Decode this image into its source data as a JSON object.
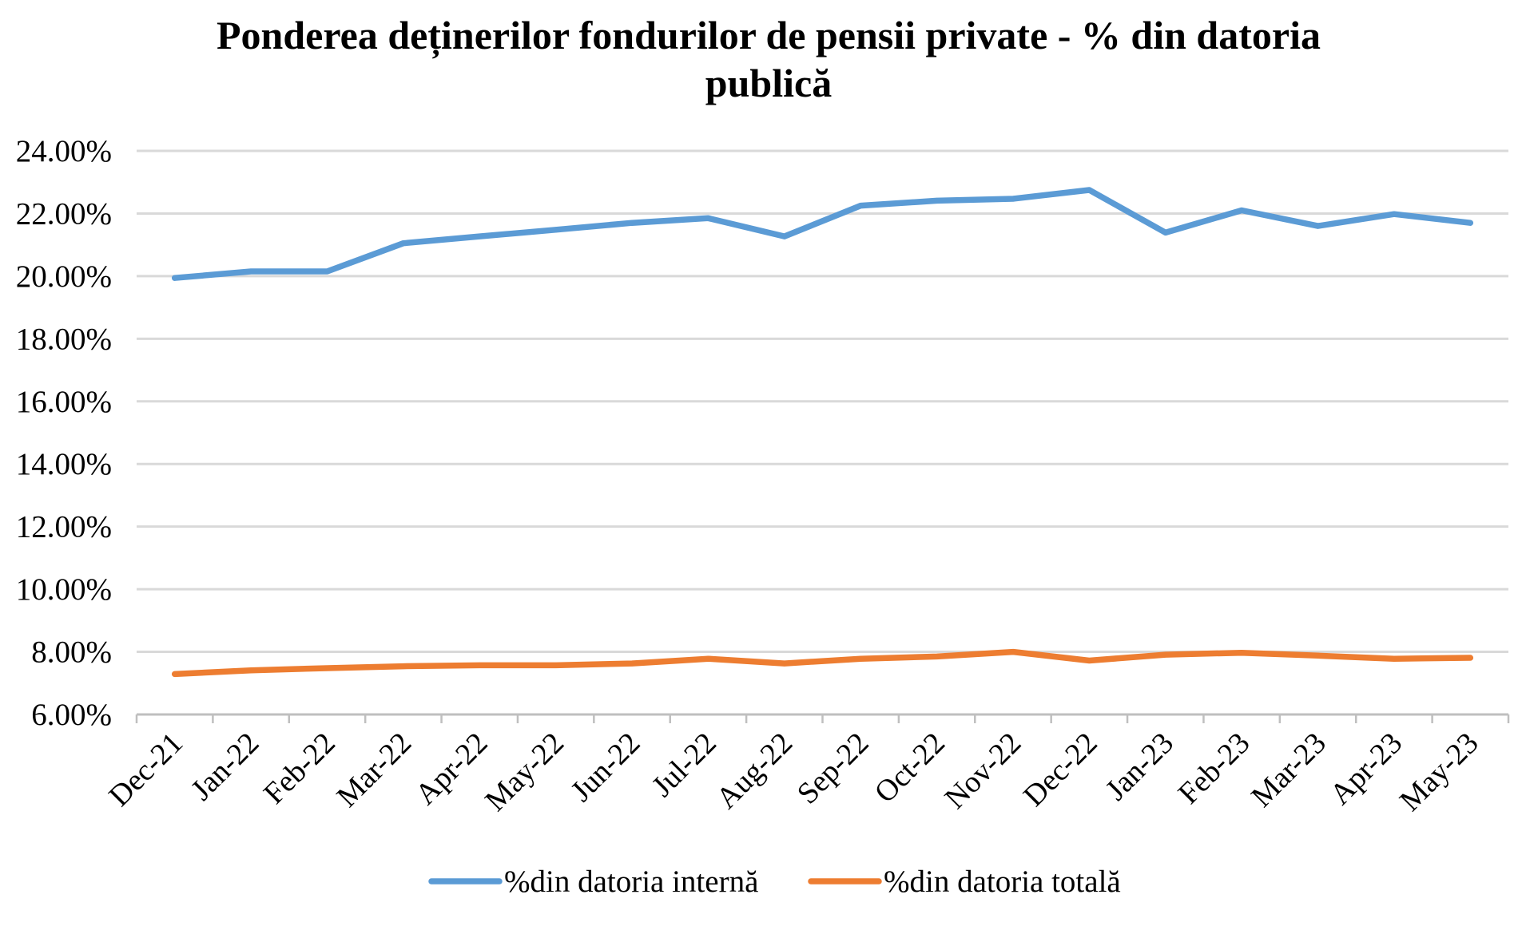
{
  "chart_data": {
    "type": "line",
    "title": "Ponderea deținerilor fondurilor de pensii private - % din datoria publică",
    "xlabel": "",
    "ylabel": "",
    "categories": [
      "Dec-21",
      "Jan-22",
      "Feb-22",
      "Mar-22",
      "Apr-22",
      "May-22",
      "Jun-22",
      "Jul-22",
      "Aug-22",
      "Sep-22",
      "Oct-22",
      "Nov-22",
      "Dec-22",
      "Jan-23",
      "Feb-23",
      "Mar-23",
      "Apr-23",
      "May-23"
    ],
    "series": [
      {
        "name": "%din datoria internă",
        "color": "#5b9bd5",
        "values": [
          19.94,
          20.15,
          20.15,
          21.05,
          21.27,
          21.48,
          21.7,
          21.85,
          21.27,
          22.25,
          22.41,
          22.47,
          22.75,
          21.39,
          22.1,
          21.6,
          21.98,
          21.7
        ]
      },
      {
        "name": "%din datoria totală",
        "color": "#ed7d31",
        "values": [
          7.29,
          7.41,
          7.48,
          7.54,
          7.57,
          7.57,
          7.63,
          7.78,
          7.63,
          7.78,
          7.85,
          8.0,
          7.72,
          7.91,
          7.97,
          7.88,
          7.78,
          7.81
        ]
      }
    ],
    "ylim": [
      6,
      24
    ],
    "y_ticks": [
      {
        "value": 6,
        "label": "6.00%"
      },
      {
        "value": 8,
        "label": "8.00%"
      },
      {
        "value": 10,
        "label": "10.00%"
      },
      {
        "value": 12,
        "label": "12.00%"
      },
      {
        "value": 14,
        "label": "14.00%"
      },
      {
        "value": 16,
        "label": "16.00%"
      },
      {
        "value": 18,
        "label": "18.00%"
      },
      {
        "value": 20,
        "label": "20.00%"
      },
      {
        "value": 22,
        "label": "22.00%"
      },
      {
        "value": 24,
        "label": "24.00%"
      }
    ],
    "grid": true,
    "legend": "bottom",
    "colors": {
      "gridline": "#d9d9d9",
      "axis": "#bfbfbf",
      "text": "#000000"
    }
  }
}
